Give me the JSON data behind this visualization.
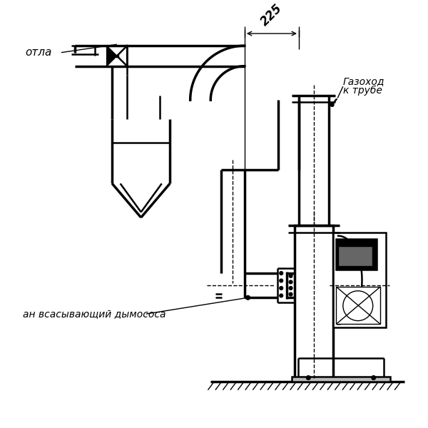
{
  "bg_color": "#ffffff",
  "lc": "#000000",
  "lw_thin": 1.0,
  "lw_med": 1.8,
  "lw_thick": 2.5,
  "figsize": [
    6.0,
    6.0
  ],
  "dpi": 100,
  "text_225": "225",
  "label_kotla": "отла",
  "label_gazokhod1": "Газоход",
  "label_gazokhod2": "к трубе",
  "label_patrubok": "ан всасывающий дымососа"
}
